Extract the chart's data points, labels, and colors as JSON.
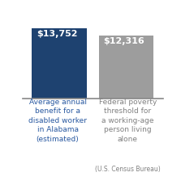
{
  "categories_main": [
    "Average annual\nbenefit for a\na disabled worker\nin Alabama\n(estimated)",
    "Federal poverty\nthreshold for\na working-age\nperson living\nalone"
  ],
  "category_sub": [
    "",
    "(U.S. Census Bureau)"
  ],
  "values": [
    13752,
    12316
  ],
  "labels": [
    "$13,752",
    "$12,316"
  ],
  "bar_colors": [
    "#1e4270",
    "#9d9d9d"
  ],
  "label_color": "#ffffff",
  "tick_label_color_0": "#2858a0",
  "tick_label_color_1": "#808080",
  "background_color": "#ffffff",
  "ylim": [
    0,
    15000
  ],
  "bar_width": 0.82,
  "label_fontsize": 8.0,
  "tick_fontsize": 6.5,
  "sub_fontsize": 5.5
}
